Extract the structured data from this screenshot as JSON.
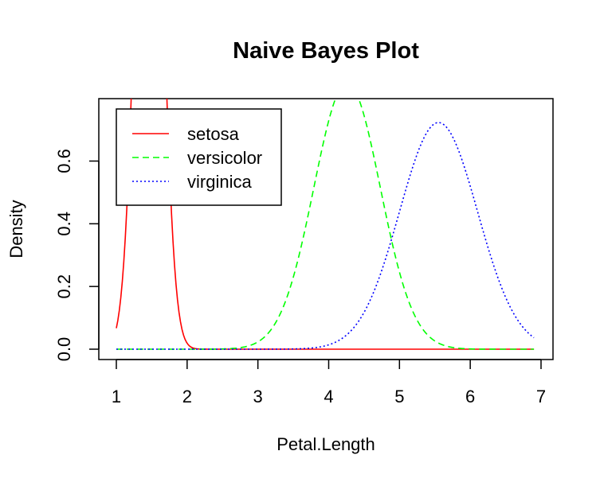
{
  "chart_data": {
    "type": "line",
    "title": "Naive Bayes Plot",
    "xlabel": "Petal.Length",
    "ylabel": "Density",
    "xlim": [
      1,
      6.9
    ],
    "ylim": [
      0,
      0.75
    ],
    "x_ticks": [
      1,
      2,
      3,
      4,
      5,
      6,
      7
    ],
    "y_ticks": [
      0.0,
      0.2,
      0.4,
      0.6
    ],
    "x_tick_labels": [
      "1",
      "2",
      "3",
      "4",
      "5",
      "6",
      "7"
    ],
    "y_tick_labels": [
      "0.0",
      "0.2",
      "0.4",
      "0.6"
    ],
    "grid": false,
    "legend_position": "top-left",
    "series": [
      {
        "name": "setosa",
        "color": "#ff0000",
        "dash": "solid",
        "distribution": "normal",
        "mean": 1.462,
        "sd": 0.1737
      },
      {
        "name": "versicolor",
        "color": "#00ff00",
        "dash": "dashed",
        "distribution": "normal",
        "mean": 4.26,
        "sd": 0.4699
      },
      {
        "name": "virginica",
        "color": "#0000ff",
        "dash": "dotted",
        "distribution": "normal",
        "mean": 5.552,
        "sd": 0.5519
      }
    ]
  }
}
